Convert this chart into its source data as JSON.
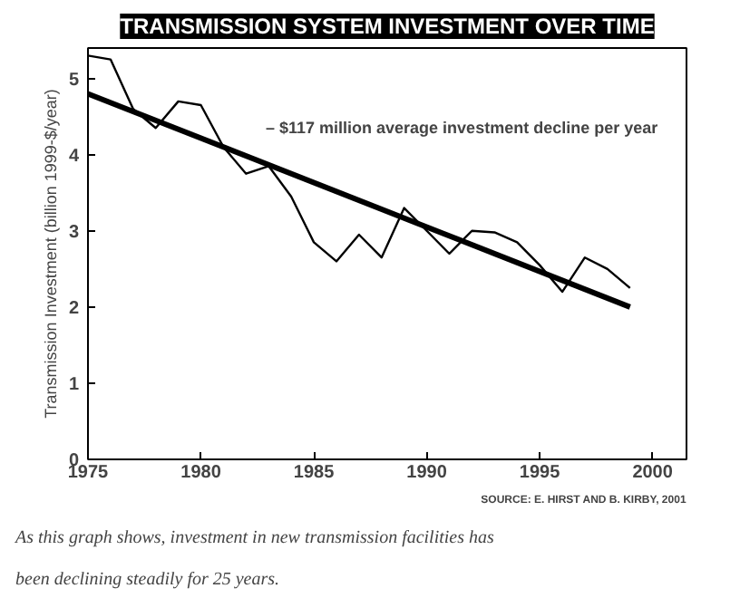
{
  "chart_data": {
    "type": "line",
    "title": "TRANSMISSION SYSTEM INVESTMENT OVER TIME",
    "ylabel": "Transmission Investment (billion 1999-$/year)",
    "series": [
      {
        "color": "#000000",
        "x": [
          1975,
          1976,
          1977,
          1978,
          1979,
          1980,
          1981,
          1982,
          1983,
          1984,
          1985,
          1986,
          1987,
          1988,
          1989,
          1990,
          1991,
          1992,
          1993,
          1994,
          1995,
          1996,
          1997,
          1998,
          1999
        ],
        "values": [
          5.3,
          5.25,
          4.6,
          4.35,
          4.7,
          4.65,
          4.1,
          3.75,
          3.85,
          3.45,
          2.85,
          2.6,
          2.95,
          2.65,
          3.3,
          3.0,
          2.7,
          3.0,
          2.98,
          2.85,
          2.55,
          2.2,
          2.65,
          2.5,
          2.25
        ]
      },
      {
        "color": "#000000",
        "type": "line",
        "x": [
          1975,
          1999
        ],
        "values": [
          4.8,
          2.0
        ]
      }
    ],
    "xlim": [
      1975,
      2001.5
    ],
    "xticks": [
      1975,
      1980,
      1985,
      1990,
      1995,
      2000
    ],
    "ylim": [
      0,
      5.4
    ],
    "yticks": [
      0,
      1,
      2,
      3,
      4,
      5
    ],
    "grid": false,
    "marker": "none",
    "line_style": "solid",
    "annotations": [
      "– $117 million average investment decline per year",
      "SOURCE: E. HIRST AND B. KIRBY, 2001",
      "As this graph shows, investment in new transmission facilities has been declining steadily for 25 years."
    ]
  }
}
